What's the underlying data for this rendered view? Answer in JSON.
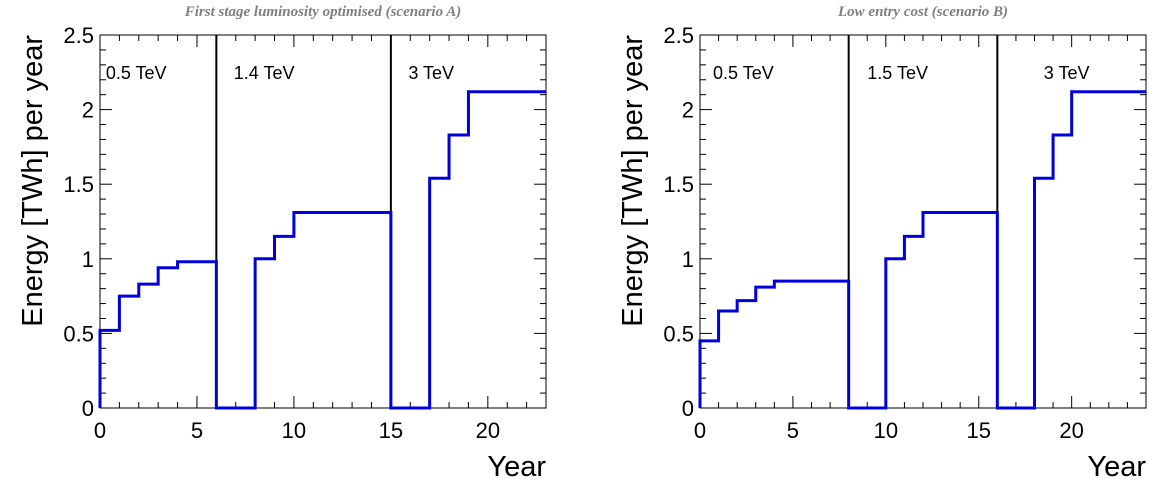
{
  "chart_data": [
    {
      "type": "line",
      "step": true,
      "title": "First stage luminosity optimised (scenario A)",
      "xlabel": "Year",
      "ylabel": "Energy [TWh] per year",
      "xlim": [
        0,
        23
      ],
      "ylim": [
        0,
        2.5
      ],
      "xticks": [
        0,
        5,
        10,
        15,
        20
      ],
      "xtick_labels": [
        "0",
        "5",
        "10",
        "15",
        "20"
      ],
      "yticks": [
        0,
        0.5,
        1,
        1.5,
        2,
        2.5
      ],
      "ytick_labels": [
        "0",
        "0.5",
        "1",
        "1.5",
        "2",
        "2.5"
      ],
      "stage_boundaries": [
        6,
        15
      ],
      "stages": [
        {
          "label": "0.5 TeV",
          "x": 0.3
        },
        {
          "label": "1.4 TeV",
          "x": 6.9
        },
        {
          "label": "3 TeV",
          "x": 15.9
        }
      ],
      "series": [
        {
          "color": "#0000dd",
          "x": [
            0,
            1,
            2,
            3,
            4,
            6,
            8,
            9,
            10,
            15,
            17,
            18,
            19
          ],
          "values": [
            0.52,
            0.75,
            0.83,
            0.94,
            0.98,
            0,
            1.0,
            1.15,
            1.31,
            0,
            1.54,
            1.83,
            2.12
          ],
          "x_end": 23
        }
      ]
    },
    {
      "type": "line",
      "step": true,
      "title": "Low entry cost (scenario B)",
      "xlabel": "Year",
      "ylabel": "Energy [TWh] per year",
      "xlim": [
        0,
        24
      ],
      "ylim": [
        0,
        2.5
      ],
      "xticks": [
        0,
        5,
        10,
        15,
        20
      ],
      "xtick_labels": [
        "0",
        "5",
        "10",
        "15",
        "20"
      ],
      "yticks": [
        0,
        0.5,
        1,
        1.5,
        2,
        2.5
      ],
      "ytick_labels": [
        "0",
        "0.5",
        "1",
        "1.5",
        "2",
        "2.5"
      ],
      "stage_boundaries": [
        8,
        16
      ],
      "stages": [
        {
          "label": "0.5 TeV",
          "x": 0.7
        },
        {
          "label": "1.5 TeV",
          "x": 9.0
        },
        {
          "label": "3 TeV",
          "x": 18.5
        }
      ],
      "series": [
        {
          "color": "#0000dd",
          "x": [
            0,
            1,
            2,
            3,
            4,
            8,
            10,
            11,
            12,
            16,
            18,
            19,
            20
          ],
          "values": [
            0.45,
            0.65,
            0.72,
            0.81,
            0.85,
            0,
            1.0,
            1.15,
            1.31,
            0,
            1.54,
            1.83,
            2.12
          ],
          "x_end": 24
        }
      ]
    }
  ]
}
